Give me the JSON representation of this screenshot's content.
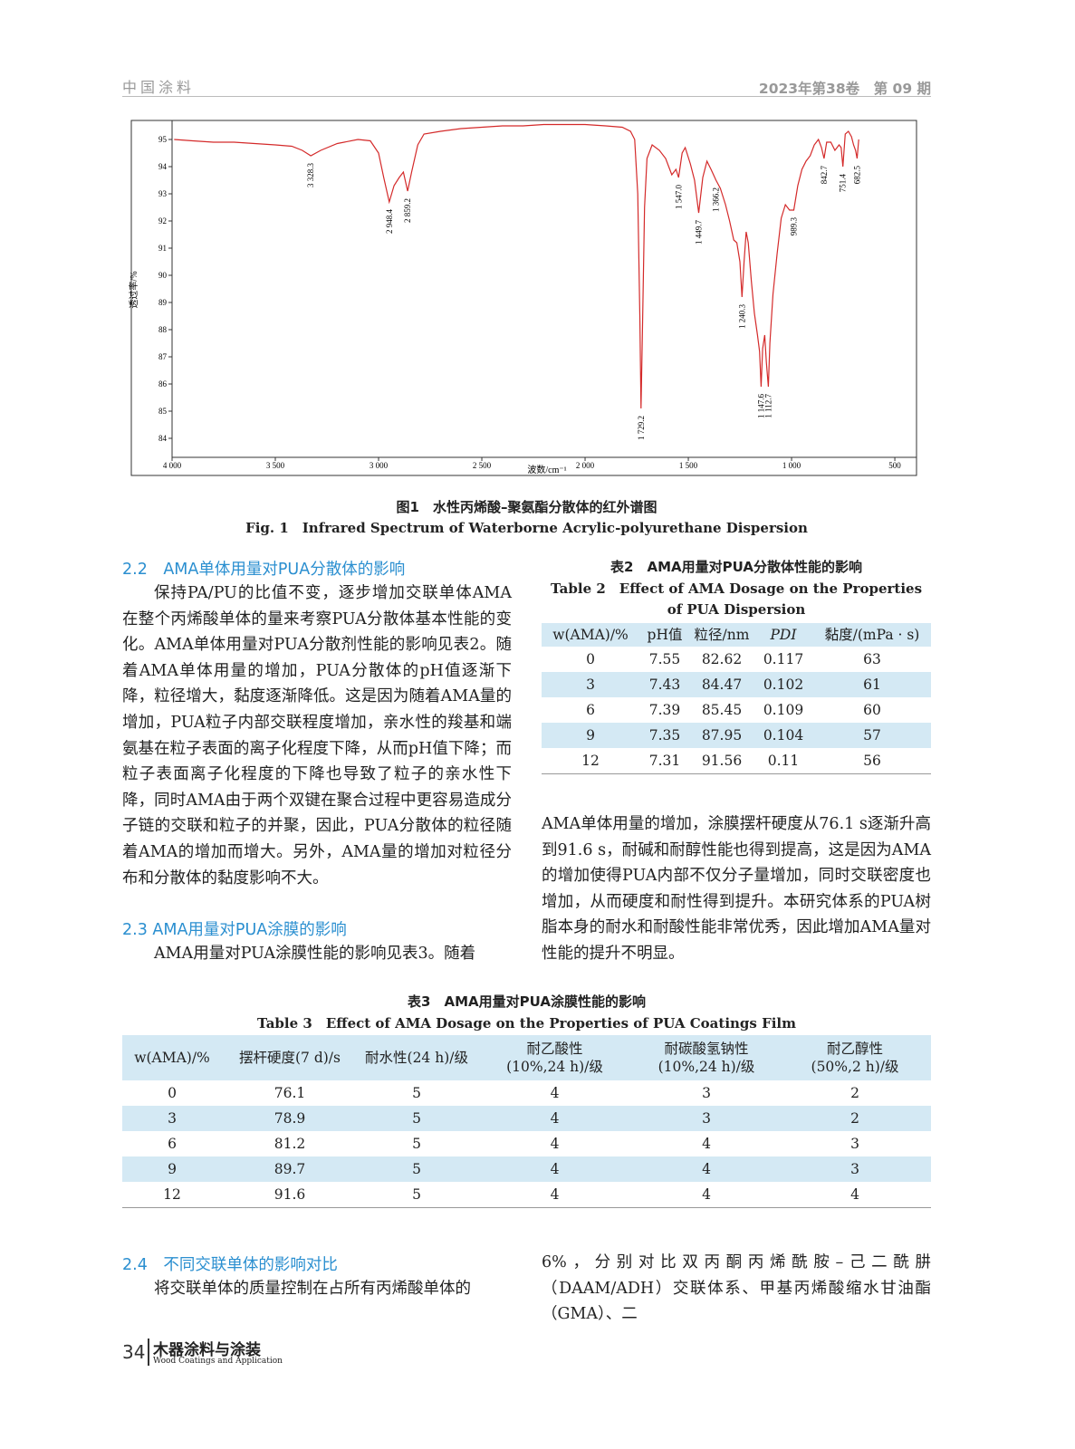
{
  "header": {
    "journal": "中国涂料",
    "issue": "2023年第38卷　第 09 期"
  },
  "chart_data": {
    "type": "line",
    "xlabel": "波数/cm⁻¹",
    "ylabel": "透过率/%",
    "color": "#d42a2a",
    "xlim": [
      4000,
      395
    ],
    "ylim": [
      83.3,
      95.7
    ],
    "xticks": [
      {
        "value": 4000,
        "label": "4 000"
      },
      {
        "value": 3500,
        "label": "3 500"
      },
      {
        "value": 3000,
        "label": "3 000"
      },
      {
        "value": 2500,
        "label": "2 500"
      },
      {
        "value": 2000,
        "label": "2 000"
      },
      {
        "value": 1500,
        "label": "1 500"
      },
      {
        "value": 1000,
        "label": "1 000"
      },
      500
    ],
    "yticks": [
      84,
      85,
      86,
      87,
      88,
      89,
      90,
      91,
      92,
      93,
      94,
      95
    ],
    "x": [
      3990,
      3900,
      3800,
      3700,
      3600,
      3500,
      3420,
      3370,
      3328.3,
      3280,
      3200,
      3100,
      3040,
      3000,
      2975,
      2948.4,
      2925,
      2900,
      2880,
      2859.2,
      2840,
      2810,
      2780,
      2700,
      2600,
      2500,
      2400,
      2300,
      2200,
      2100,
      2000,
      1900,
      1820,
      1780,
      1760,
      1745,
      1735,
      1729.2,
      1722,
      1712,
      1700,
      1675,
      1640,
      1610,
      1580,
      1560,
      1547,
      1530,
      1515,
      1490,
      1470,
      1449.7,
      1430,
      1410,
      1390,
      1366.2,
      1345,
      1320,
      1300,
      1280,
      1265,
      1250,
      1240.3,
      1230,
      1220,
      1210,
      1195,
      1180,
      1165,
      1155,
      1147.6,
      1140,
      1130,
      1122,
      1112.7,
      1105,
      1090,
      1070,
      1050,
      1030,
      1010,
      989.3,
      970,
      950,
      930,
      910,
      890,
      870,
      855,
      842.7,
      830,
      810,
      790,
      770,
      760,
      751.4,
      740,
      725,
      710,
      700,
      690,
      682.5,
      675
    ],
    "values": [
      95.0,
      94.95,
      94.9,
      94.9,
      94.85,
      94.8,
      94.75,
      94.6,
      94.4,
      94.6,
      94.85,
      95.0,
      94.95,
      94.5,
      93.6,
      92.7,
      93.3,
      93.6,
      93.8,
      93.1,
      93.8,
      94.8,
      95.2,
      95.3,
      95.4,
      95.45,
      95.5,
      95.5,
      95.55,
      95.55,
      95.55,
      95.5,
      95.45,
      95.3,
      95.0,
      93.0,
      88.5,
      85.1,
      88.0,
      92.5,
      94.3,
      94.8,
      94.6,
      94.3,
      93.7,
      93.9,
      93.6,
      94.5,
      94.7,
      94.1,
      93.5,
      92.3,
      93.6,
      94.2,
      93.9,
      93.5,
      93.2,
      92.6,
      92.0,
      91.3,
      91.2,
      90.5,
      89.2,
      90.5,
      91.6,
      91.2,
      89.8,
      88.6,
      87.8,
      87.2,
      85.9,
      87.3,
      87.8,
      86.8,
      85.9,
      87.5,
      89.3,
      90.8,
      92.1,
      92.6,
      92.4,
      92.4,
      93.3,
      93.9,
      94.2,
      94.4,
      94.8,
      95.0,
      94.7,
      94.3,
      94.9,
      94.9,
      94.6,
      94.8,
      94.7,
      94.0,
      95.2,
      95.3,
      95.1,
      94.8,
      94.6,
      94.3,
      95.0
    ],
    "annotations": [
      {
        "value": 3328.3,
        "label": "3 328.3"
      },
      {
        "value": 2948.4,
        "label": "2 948.4"
      },
      {
        "value": 2859.2,
        "label": "2 859.2"
      },
      {
        "value": 1729.2,
        "label": "1 729.2"
      },
      {
        "value": 1547.0,
        "label": "1 547.0"
      },
      {
        "value": 1449.7,
        "label": "1 449.7"
      },
      {
        "value": 1366.2,
        "label": "1 366.2"
      },
      {
        "value": 1240.3,
        "label": "1 240.3"
      },
      {
        "value": 1147.6,
        "label": "1 147.6"
      },
      {
        "value": 1112.7,
        "label": "1 112.7"
      },
      {
        "value": 989.3,
        "label": "989.3"
      },
      {
        "value": 842.7,
        "label": "842.7"
      },
      {
        "value": 751.4,
        "label": "751.4"
      },
      {
        "value": 682.5,
        "label": "682.5"
      }
    ]
  },
  "figure_caption": {
    "cn": "图1　水性丙烯酸–聚氨酯分散体的红外谱图",
    "en": "Fig. 1　Infrared Spectrum of Waterborne Acrylic-polyurethane Dispersion"
  },
  "section_2_2": {
    "heading": "2.2　AMA单体用量对PUA分散体的影响",
    "text": "保持PA/PU的比值不变，逐步增加交联单体AMA在整个丙烯酸单体的量来考察PUA分散体基本性能的变化。AMA单体用量对PUA分散剂性能的影响见表2。随着AMA单体用量的增加，PUA分散体的pH值逐渐下降，粒径增大，黏度逐渐降低。这是因为随着AMA量的增加，PUA粒子内部交联程度增加，亲水性的羧基和端氨基在粒子表面的离子化程度下降，从而pH值下降；而粒子表面离子化程度的下降也导致了粒子的亲水性下降，同时AMA由于两个双键在聚合过程中更容易造成分子链的交联和粒子的并聚，因此，PUA分散体的粒径随着AMA的增加而增大。另外，AMA量的增加对粒径分布和分散体的黏度影响不大。"
  },
  "section_2_3": {
    "heading": "2.3  AMA用量对PUA涂膜的影响",
    "text_parts": [
      "AMA用量对PUA涂膜性能的影响见表3。随着",
      "AMA单体用量的增加，涂膜摆杆硬度从76.1 s逐渐升高到91.6 s，耐碱和耐醇性能也得到提高，这是因为AMA的增加使得PUA内部不仅分子量增加，同时交联密度也增加，从而硬度和耐性得到提升。本研究体系的PUA树脂本身的耐水和耐酸性能非常优秀，因此增加AMA量对性能的提升不明显。"
    ]
  },
  "table2": {
    "title_cn": "表2　AMA用量对PUA分散体性能的影响",
    "title_en": "Table 2　Effect of AMA Dosage on the Properties of PUA Dispersion",
    "columns": [
      "w(AMA)/%",
      "pH值",
      "粒径/nm",
      "PDI",
      "黏度/(mPa · s)"
    ],
    "rows": [
      [
        0,
        7.55,
        82.62,
        0.117,
        63
      ],
      [
        3,
        7.43,
        84.47,
        0.102,
        61
      ],
      [
        6,
        7.39,
        85.45,
        0.109,
        60
      ],
      [
        9,
        7.35,
        87.95,
        0.104,
        57
      ],
      [
        12,
        7.31,
        91.56,
        0.11,
        56
      ]
    ]
  },
  "table3": {
    "title_cn": "表3　AMA用量对PUA涂膜性能的影响",
    "title_en": "Table 3　Effect of AMA Dosage on the Properties of PUA Coatings Film",
    "columns": [
      "w(AMA)/%",
      "摆杆硬度(7 d)/s",
      "耐水性(24 h)/级",
      "耐乙酸性\n(10%,24 h)/级",
      "耐碳酸氢钠性\n(10%,24 h)/级",
      "耐乙醇性\n(50%,2 h)/级"
    ],
    "rows": [
      [
        0,
        76.1,
        5,
        4,
        3,
        2
      ],
      [
        3,
        78.9,
        5,
        4,
        3,
        2
      ],
      [
        6,
        81.2,
        5,
        4,
        4,
        3
      ],
      [
        9,
        89.7,
        5,
        4,
        4,
        3
      ],
      [
        12,
        91.6,
        5,
        4,
        4,
        4
      ]
    ]
  },
  "section_2_4": {
    "heading": "2.4　不同交联单体的影响对比",
    "text_parts": [
      "将交联单体的质量控制在占所有丙烯酸单体的",
      "6%，分别对比双丙酮丙烯酰胺–己二酰肼（DAAM/ADH）交联体系、甲基丙烯酸缩水甘油酯（GMA）、二"
    ]
  },
  "footer": {
    "page": "34",
    "journal_cn": "木器涂料与涂装",
    "journal_en": "Wood Coatings and Application"
  }
}
